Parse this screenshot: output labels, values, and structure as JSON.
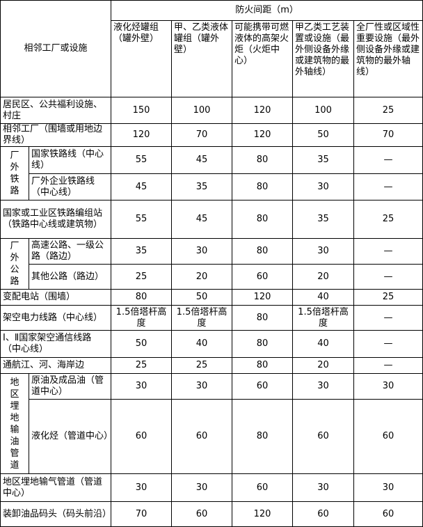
{
  "header": {
    "facility_col": "相邻工厂或设施",
    "group_title": "防火间距（m）",
    "columns": [
      "液化烃罐组（罐外壁）",
      "甲、乙类液体罐组（罐外壁）",
      "可能携带可燃液体的高架火炬（火炬中心）",
      "甲乙类工艺装置或设施（最外侧设备外缘或建筑物的最外轴线）",
      "全厂性或区域性重要设施（最外侧设备外缘或建筑物的最外轴线）"
    ]
  },
  "groups": {
    "railway": "厂外铁路",
    "highway": "厂外公路",
    "pipeline": "地区埋地输油管道"
  },
  "rows": [
    {
      "name": "居民区、公共福利设施、村庄",
      "values": [
        "150",
        "100",
        "120",
        "100",
        "25"
      ]
    },
    {
      "name": "相邻工厂（围墙或用地边界线）",
      "values": [
        "120",
        "70",
        "120",
        "50",
        "70"
      ]
    },
    {
      "name": "国家铁路线（中心线）",
      "values": [
        "55",
        "45",
        "80",
        "35",
        "—"
      ]
    },
    {
      "name": "厂外企业铁路线（中心线）",
      "values": [
        "45",
        "35",
        "80",
        "30",
        "—"
      ]
    },
    {
      "name": "国家或工业区铁路编组站（铁路中心线或建筑物）",
      "values": [
        "55",
        "45",
        "80",
        "35",
        "25"
      ]
    },
    {
      "name": "高速公路、一级公路（路边）",
      "values": [
        "35",
        "30",
        "80",
        "30",
        "—"
      ]
    },
    {
      "name": "其他公路（路边）",
      "values": [
        "25",
        "20",
        "60",
        "20",
        "—"
      ]
    },
    {
      "name": "变配电站（围墙）",
      "values": [
        "80",
        "50",
        "120",
        "40",
        "25"
      ]
    },
    {
      "name": "架空电力线路（中心线）",
      "values": [
        "1.5倍塔杆高度",
        "1.5倍塔杆高度",
        "80",
        "1.5倍塔杆高度",
        "—"
      ]
    },
    {
      "name": "Ⅰ、Ⅱ国家架空通信线路（中心线）",
      "values": [
        "50",
        "40",
        "80",
        "40",
        "—"
      ]
    },
    {
      "name": "通航江、河、海岸边",
      "values": [
        "25",
        "25",
        "80",
        "20",
        "—"
      ]
    },
    {
      "name": "原油及成品油（管道中心）",
      "values": [
        "30",
        "30",
        "60",
        "30",
        "30"
      ]
    },
    {
      "name": "液化烃（管道中心）",
      "values": [
        "60",
        "60",
        "80",
        "60",
        "60"
      ]
    },
    {
      "name": "地区埋地输气管道（管道中心）",
      "values": [
        "30",
        "30",
        "60",
        "30",
        "30"
      ]
    },
    {
      "name": "装卸油品码头（码头前沿）",
      "values": [
        "70",
        "60",
        "120",
        "60",
        "60"
      ]
    }
  ]
}
